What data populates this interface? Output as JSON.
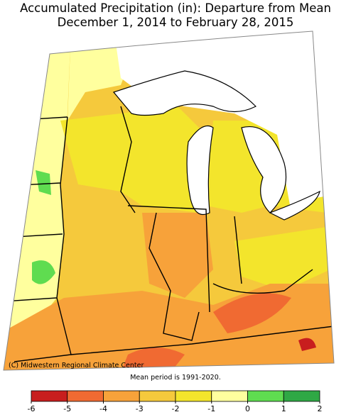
{
  "title": [
    "Accumulated Precipitation (in): Departure from Mean",
    "December 1, 2014 to February 28, 2015"
  ],
  "credit": "(C) Midwestern Regional Climate Center",
  "note": "Mean period is 1991-2020.",
  "legend": {
    "ticks": [
      -6,
      -5,
      -4,
      -3,
      -2,
      -1,
      0,
      1,
      2
    ],
    "colors": [
      "#c81e1e",
      "#f06a32",
      "#f7a23a",
      "#f5c93c",
      "#f3e52c",
      "#ffff9e",
      "#5fdc50",
      "#2fa845"
    ]
  }
}
